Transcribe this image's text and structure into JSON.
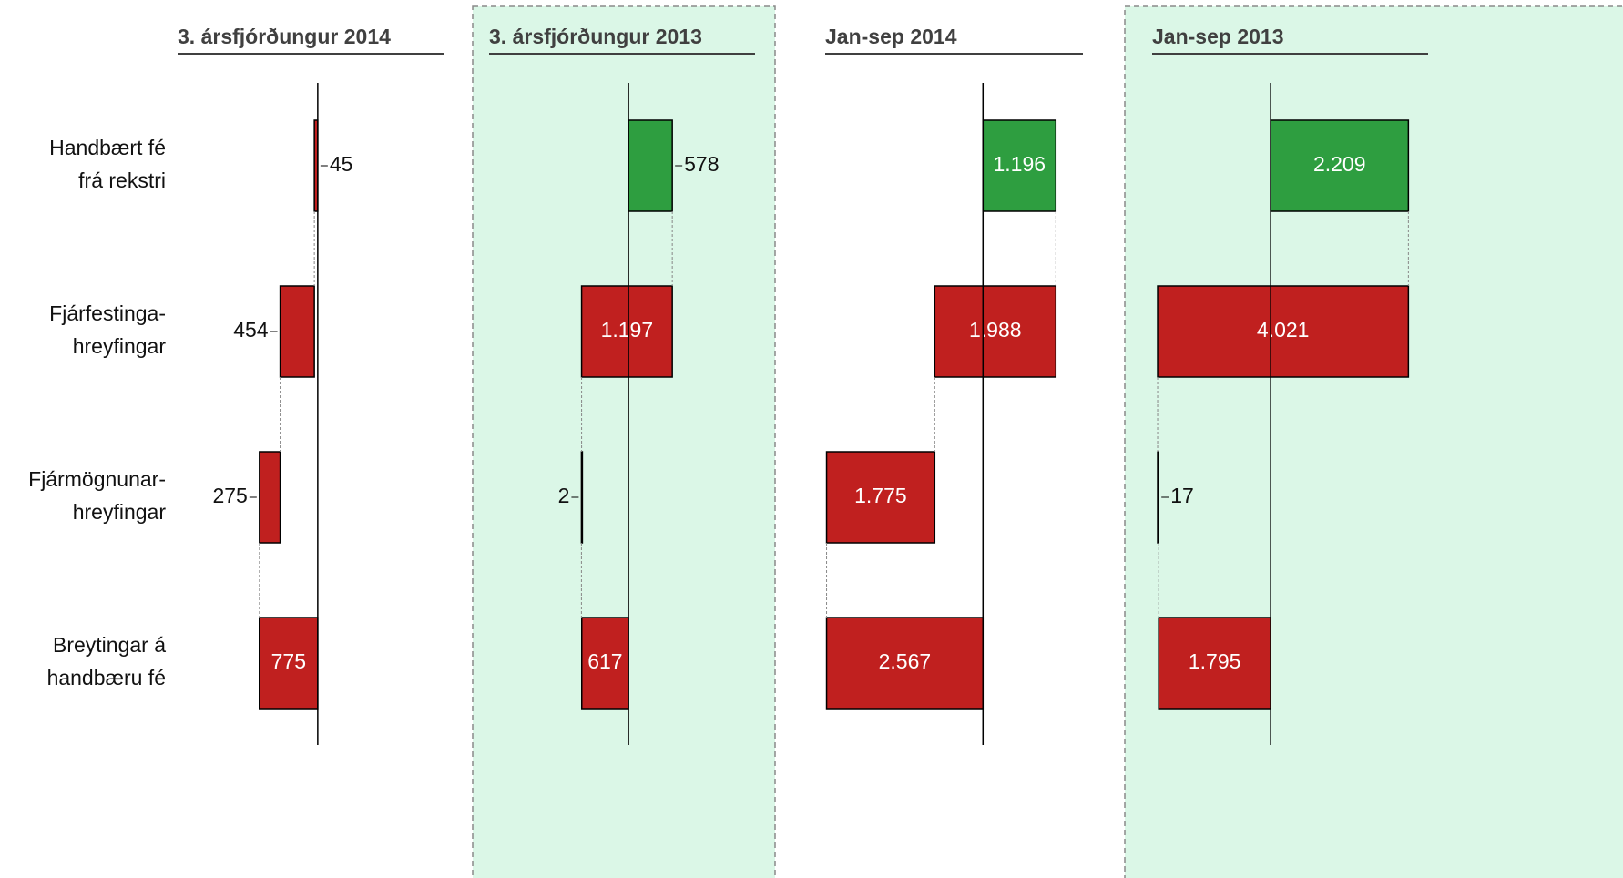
{
  "chart_data": [
    {
      "type": "waterfall",
      "title": "3. ársfjórðungur 2014",
      "categories": [
        [
          "Handbært fé",
          "frá rekstri"
        ],
        [
          "Fjárfestinga-",
          "hreyfingar"
        ],
        [
          "Fjármögnunar-",
          "hreyfingar"
        ],
        [
          "Breytingar á",
          "handbæru fé"
        ]
      ],
      "values": [
        -45,
        -454,
        -275,
        -775
      ],
      "value_labels": [
        "45",
        "454",
        "275",
        "775"
      ],
      "xlim": [
        -1860,
        1670
      ],
      "colors": {
        "positive": "#2e9e40",
        "negative": "#c0201f"
      }
    },
    {
      "type": "waterfall",
      "title": "3. ársfjórðungur 2013",
      "values": [
        578,
        -1197,
        -2,
        -617
      ],
      "value_labels": [
        "578",
        "1.197",
        "2",
        "617"
      ],
      "xlim": [
        -1840,
        1670
      ],
      "colors": {
        "positive": "#2e9e40",
        "negative": "#c0201f"
      },
      "background": "#dbf7e7"
    },
    {
      "type": "waterfall",
      "title": "Jan-sep 2014",
      "values": [
        1196,
        -1988,
        -1775,
        -2567
      ],
      "value_labels": [
        "1.196",
        "1.988",
        "1.775",
        "2.567"
      ],
      "xlim": [
        -2590,
        1640
      ],
      "colors": {
        "positive": "#2e9e40",
        "negative": "#c0201f"
      }
    },
    {
      "type": "waterfall",
      "title": "Jan-sep 2013",
      "values": [
        2209,
        -4021,
        17,
        -1795
      ],
      "value_labels": [
        "2.209",
        "4.021",
        "17",
        "1.795"
      ],
      "xlim": [
        -1900,
        2525
      ],
      "colors": {
        "positive": "#2e9e40",
        "negative": "#c0201f"
      },
      "background": "#dbf7e7"
    }
  ]
}
